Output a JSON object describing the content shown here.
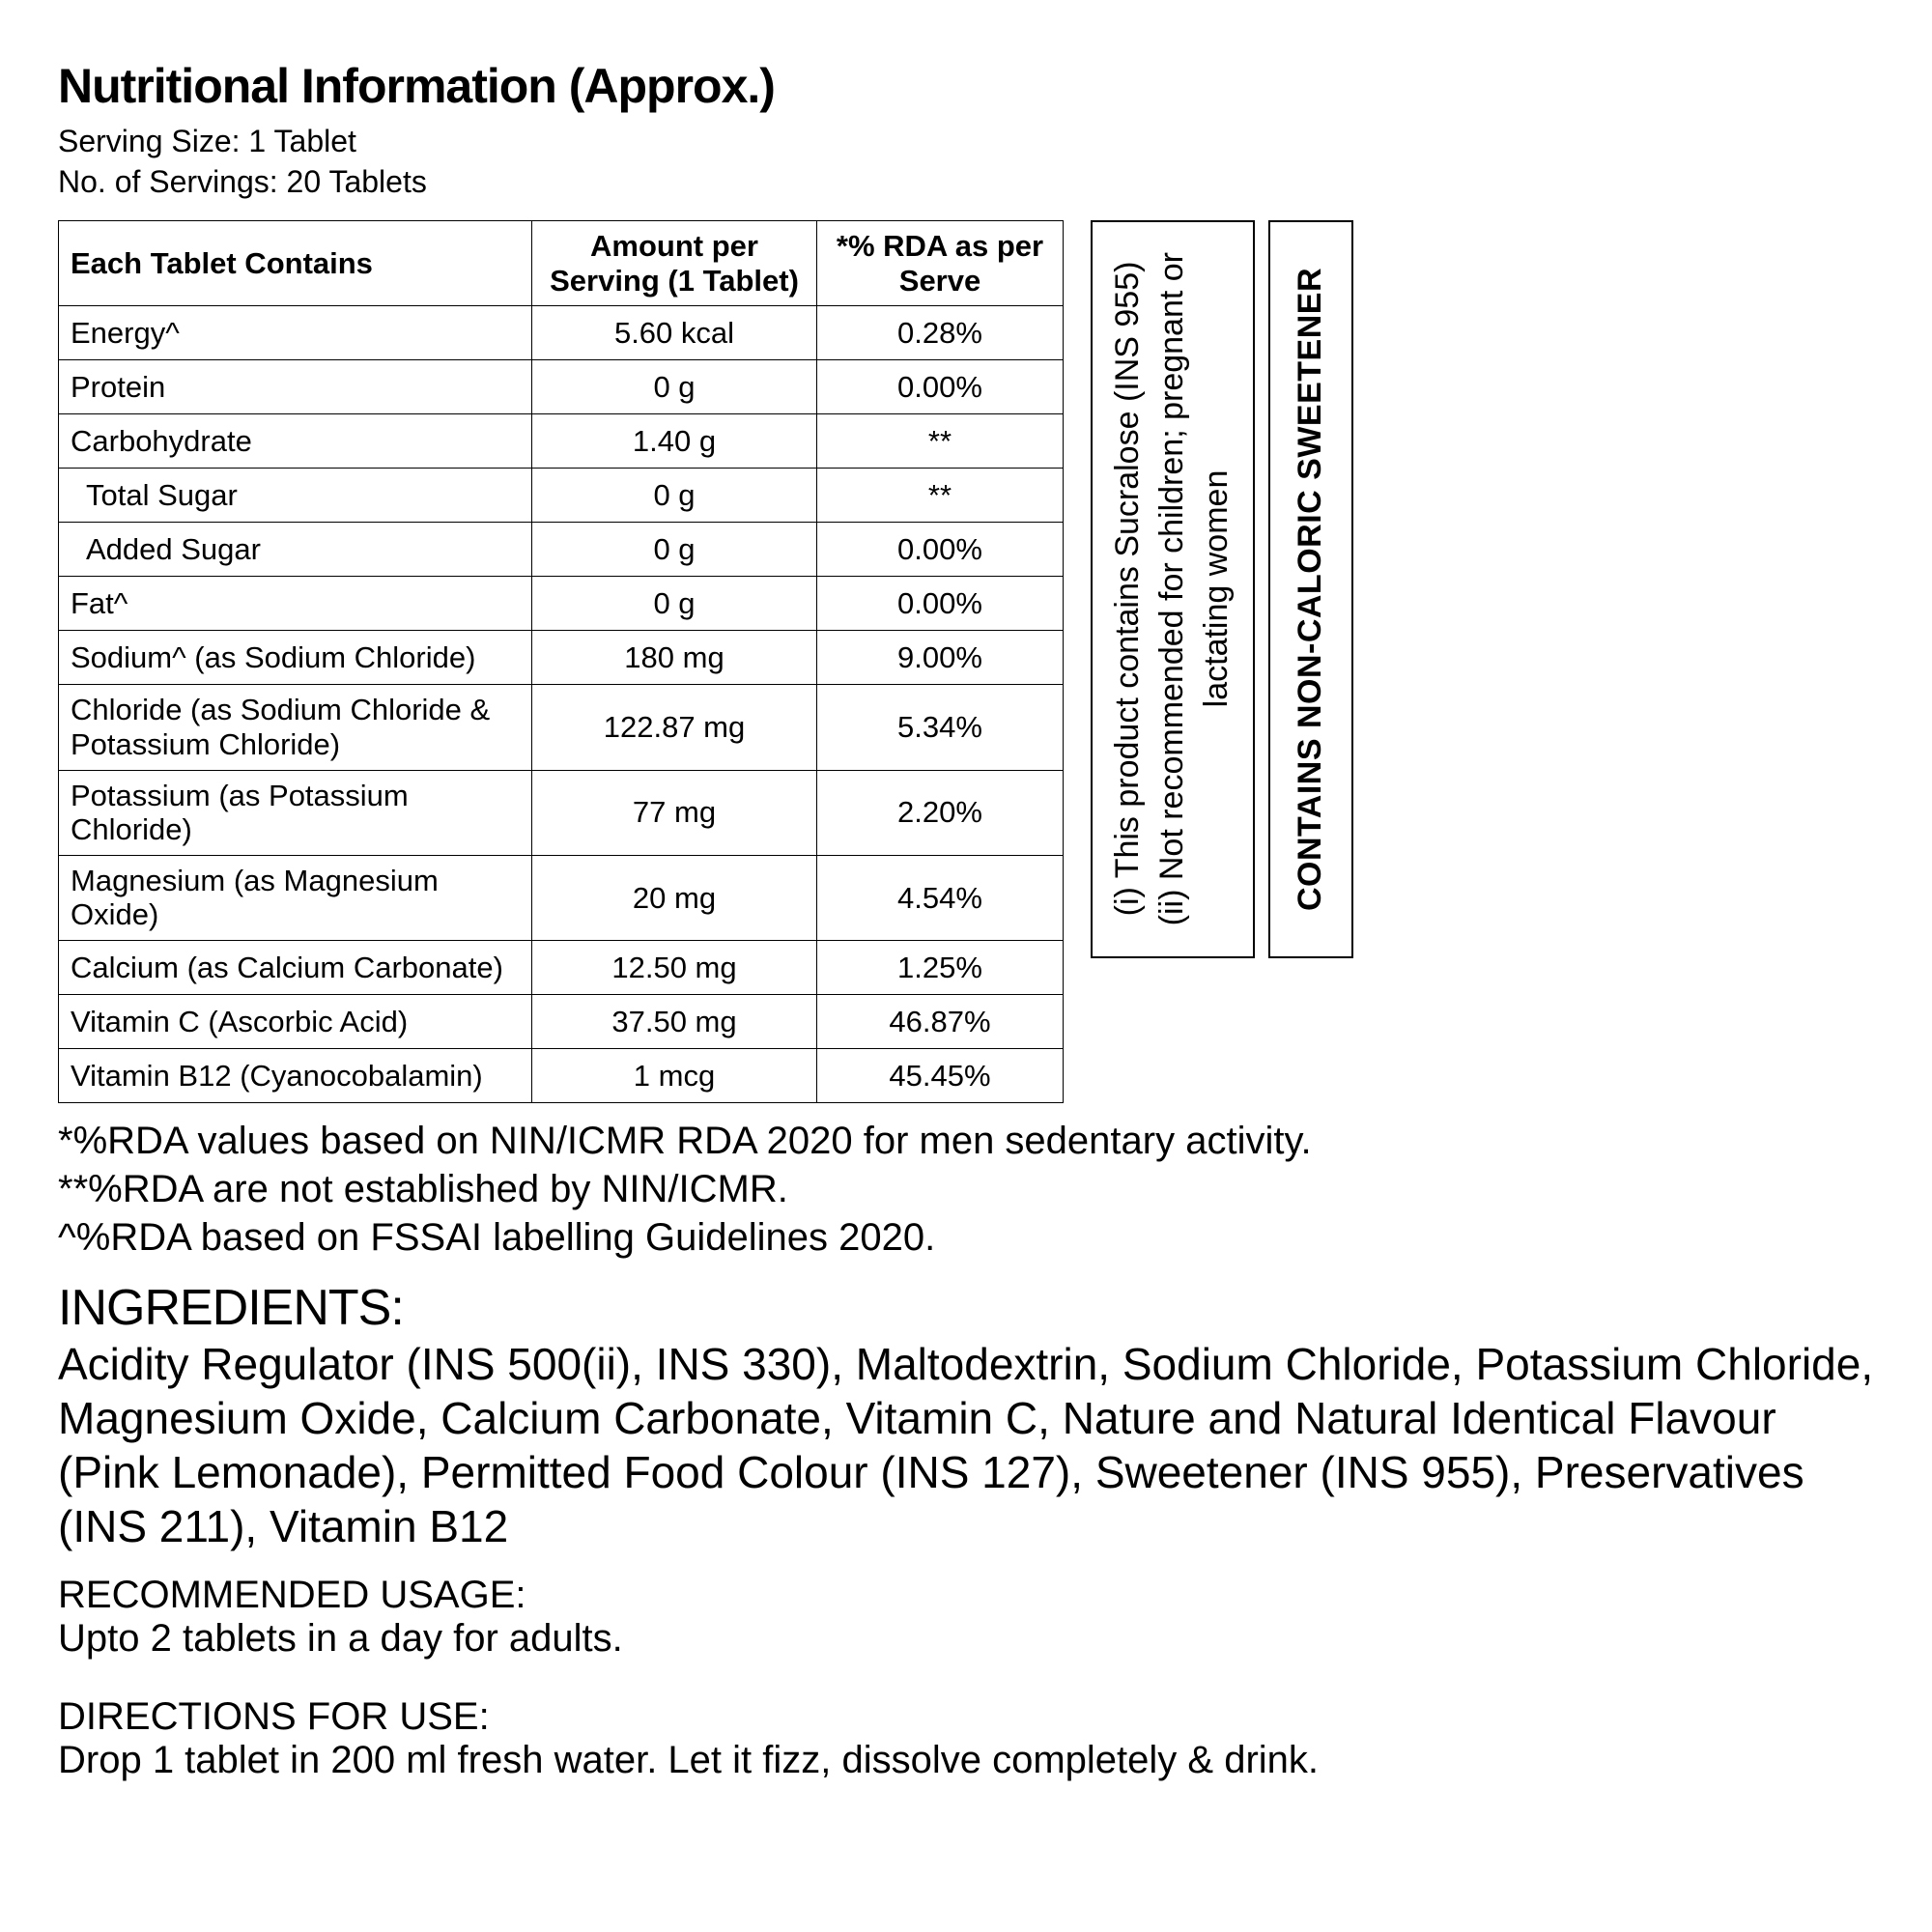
{
  "header": {
    "title": "Nutritional Information (Approx.)",
    "serving_size_label": "Serving Size:",
    "serving_size_value": "1 Tablet",
    "no_of_servings_label": "No. of Servings:",
    "no_of_servings_value": "20 Tablets"
  },
  "table": {
    "columns": [
      "Each Tablet Contains",
      "Amount per Serving (1 Tablet)",
      "*% RDA as per Serve"
    ],
    "rows": [
      {
        "name": "Energy^",
        "amount": "5.60 kcal",
        "rda": "0.28%",
        "indent": false
      },
      {
        "name": "Protein",
        "amount": "0 g",
        "rda": "0.00%",
        "indent": false
      },
      {
        "name": "Carbohydrate",
        "amount": "1.40 g",
        "rda": "**",
        "indent": false
      },
      {
        "name": "Total Sugar",
        "amount": "0 g",
        "rda": "**",
        "indent": true
      },
      {
        "name": "Added Sugar",
        "amount": "0 g",
        "rda": "0.00%",
        "indent": true
      },
      {
        "name": "Fat^",
        "amount": "0 g",
        "rda": "0.00%",
        "indent": false
      },
      {
        "name": "Sodium^ (as Sodium Chloride)",
        "amount": "180 mg",
        "rda": "9.00%",
        "indent": false
      },
      {
        "name": "Chloride (as Sodium Chloride & Potassium Chloride)",
        "amount": "122.87 mg",
        "rda": "5.34%",
        "indent": false
      },
      {
        "name": "Potassium (as Potassium Chloride)",
        "amount": "77 mg",
        "rda": "2.20%",
        "indent": false
      },
      {
        "name": "Magnesium (as Magnesium Oxide)",
        "amount": "20 mg",
        "rda": "4.54%",
        "indent": false
      },
      {
        "name": "Calcium (as Calcium Carbonate)",
        "amount": "12.50 mg",
        "rda": "1.25%",
        "indent": false
      },
      {
        "name": "Vitamin C (Ascorbic Acid)",
        "amount": "37.50 mg",
        "rda": "46.87%",
        "indent": false
      },
      {
        "name": "Vitamin B12 (Cyanocobalamin)",
        "amount": "1 mcg",
        "rda": "45.45%",
        "indent": false
      }
    ]
  },
  "side_box_1_line1": "(i) This product contains Sucralose (INS 955)",
  "side_box_1_line2": "(ii) Not recommended for children; pregnant or",
  "side_box_1_line3": "lactating women",
  "side_box_2": "CONTAINS NON-CALORIC SWEETENER",
  "footnotes": {
    "note1": "*%RDA values based on NIN/ICMR RDA 2020 for men sedentary activity.",
    "note2": "**%RDA are not established by NIN/ICMR.",
    "note3": "^%RDA based on FSSAI labelling Guidelines 2020."
  },
  "ingredients": {
    "heading": "INGREDIENTS:",
    "body": "Acidity Regulator (INS 500(ii), INS 330), Maltodextrin, Sodium Chloride, Potassium Chloride, Magnesium Oxide, Calcium Carbonate, Vitamin C, Nature and Natural Identical Flavour (Pink Lemonade), Permitted Food Colour (INS 127), Sweetener (INS 955), Preservatives (INS 211), Vitamin B12"
  },
  "recommended": {
    "heading": "RECOMMENDED USAGE:",
    "body": "Upto 2 tablets in a day for adults."
  },
  "directions": {
    "heading": "DIRECTIONS FOR USE:",
    "body": "Drop 1 tablet in 200 ml fresh water. Let it fizz, dissolve completely & drink."
  }
}
